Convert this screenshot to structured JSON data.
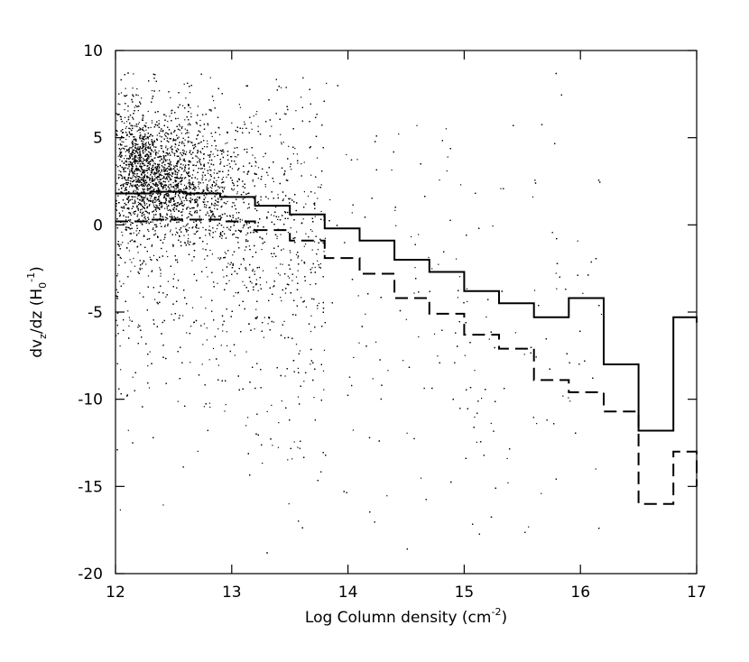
{
  "chart_data": {
    "type": "scatter",
    "title": "",
    "xlabel": {
      "main": "Log Column density (cm",
      "sup": "-2",
      "end": ")"
    },
    "ylabel": {
      "a": "dv",
      "sub1": "z",
      "b": "/dz (H",
      "sub2": "0",
      "sup2": "-1",
      "c": ")"
    },
    "xlim": [
      12,
      17
    ],
    "ylim": [
      -20,
      10
    ],
    "xticks": [
      12,
      13,
      14,
      15,
      16,
      17
    ],
    "yticks": [
      -20,
      -15,
      -10,
      -5,
      0,
      5,
      10
    ],
    "grid": false,
    "scatter_density": {
      "description_points": 9000,
      "core_center": [
        12.6,
        2.5
      ],
      "x_range": [
        12,
        16
      ],
      "y_range": [
        -20,
        9
      ]
    },
    "series": [
      {
        "style": "solid-step",
        "bin_edges": [
          12.0,
          12.3,
          12.6,
          12.9,
          13.2,
          13.5,
          13.8,
          14.1,
          14.4,
          14.7,
          15.0,
          15.3,
          15.6,
          15.9,
          16.2,
          16.5,
          16.8,
          17.0
        ],
        "values": [
          1.8,
          1.9,
          1.8,
          1.6,
          1.1,
          0.6,
          -0.2,
          -0.9,
          -2.0,
          -2.7,
          -3.8,
          -4.5,
          -5.3,
          -4.2,
          -8.0,
          -11.8,
          -5.3,
          -5.6
        ]
      },
      {
        "style": "dashed-step",
        "bin_edges": [
          12.0,
          12.3,
          12.6,
          12.9,
          13.2,
          13.5,
          13.8,
          14.1,
          14.4,
          14.7,
          15.0,
          15.3,
          15.6,
          15.9,
          16.2,
          16.5,
          16.8,
          17.0
        ],
        "values": [
          0.2,
          0.3,
          0.3,
          0.2,
          -0.3,
          -0.9,
          -1.9,
          -2.8,
          -4.2,
          -5.1,
          -6.3,
          -7.1,
          -8.9,
          -9.6,
          -10.7,
          -16.0,
          -13.0,
          -15.0
        ]
      }
    ]
  }
}
